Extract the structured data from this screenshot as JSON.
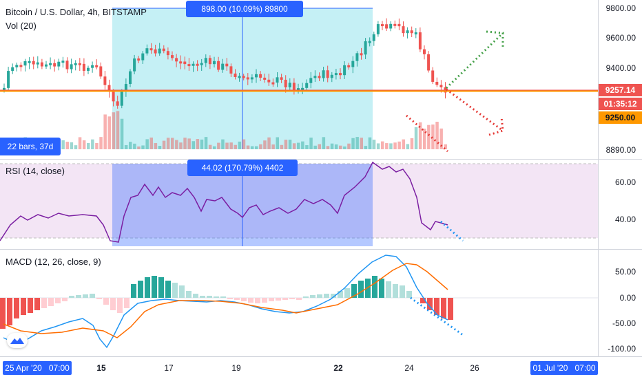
{
  "main_pane": {
    "title": "Bitcoin / U.S. Dollar, 4h, BITSTAMP",
    "volume_label": "Vol (20)",
    "price_ticks": [
      "9800.00",
      "9600.00",
      "9400.00",
      "8890.00"
    ],
    "last_price": "9257.14",
    "countdown": "01:35:12",
    "level_price": "9250.00",
    "measure_label": "898.00 (10.09%) 89800",
    "bars_label": "22 bars, 37d"
  },
  "rsi_pane": {
    "label": "RSI (14, close)",
    "ticks": [
      "60.00",
      "40.00"
    ],
    "measure_label": "44.02 (170.79%) 4402"
  },
  "macd_pane": {
    "label": "MACD (12, 26, close, 9)",
    "ticks": [
      "50.00",
      "0.00",
      "-50.00",
      "-100.00"
    ]
  },
  "time_axis": {
    "start_date": "25 Apr '20",
    "start_time": "07:00",
    "ticks": [
      "15",
      "17",
      "19",
      "22",
      "24",
      "26"
    ],
    "end_date": "01 Jul '20",
    "end_time": "07:00"
  },
  "colors": {
    "up": "#26a69a",
    "down": "#ef5350",
    "accent": "#2962ff",
    "rsi_line": "#7b1fa2",
    "macd_line": "#2196f3",
    "signal_line": "#ff6d00"
  },
  "icons": {
    "logo": "tradingview-logo-icon"
  }
}
